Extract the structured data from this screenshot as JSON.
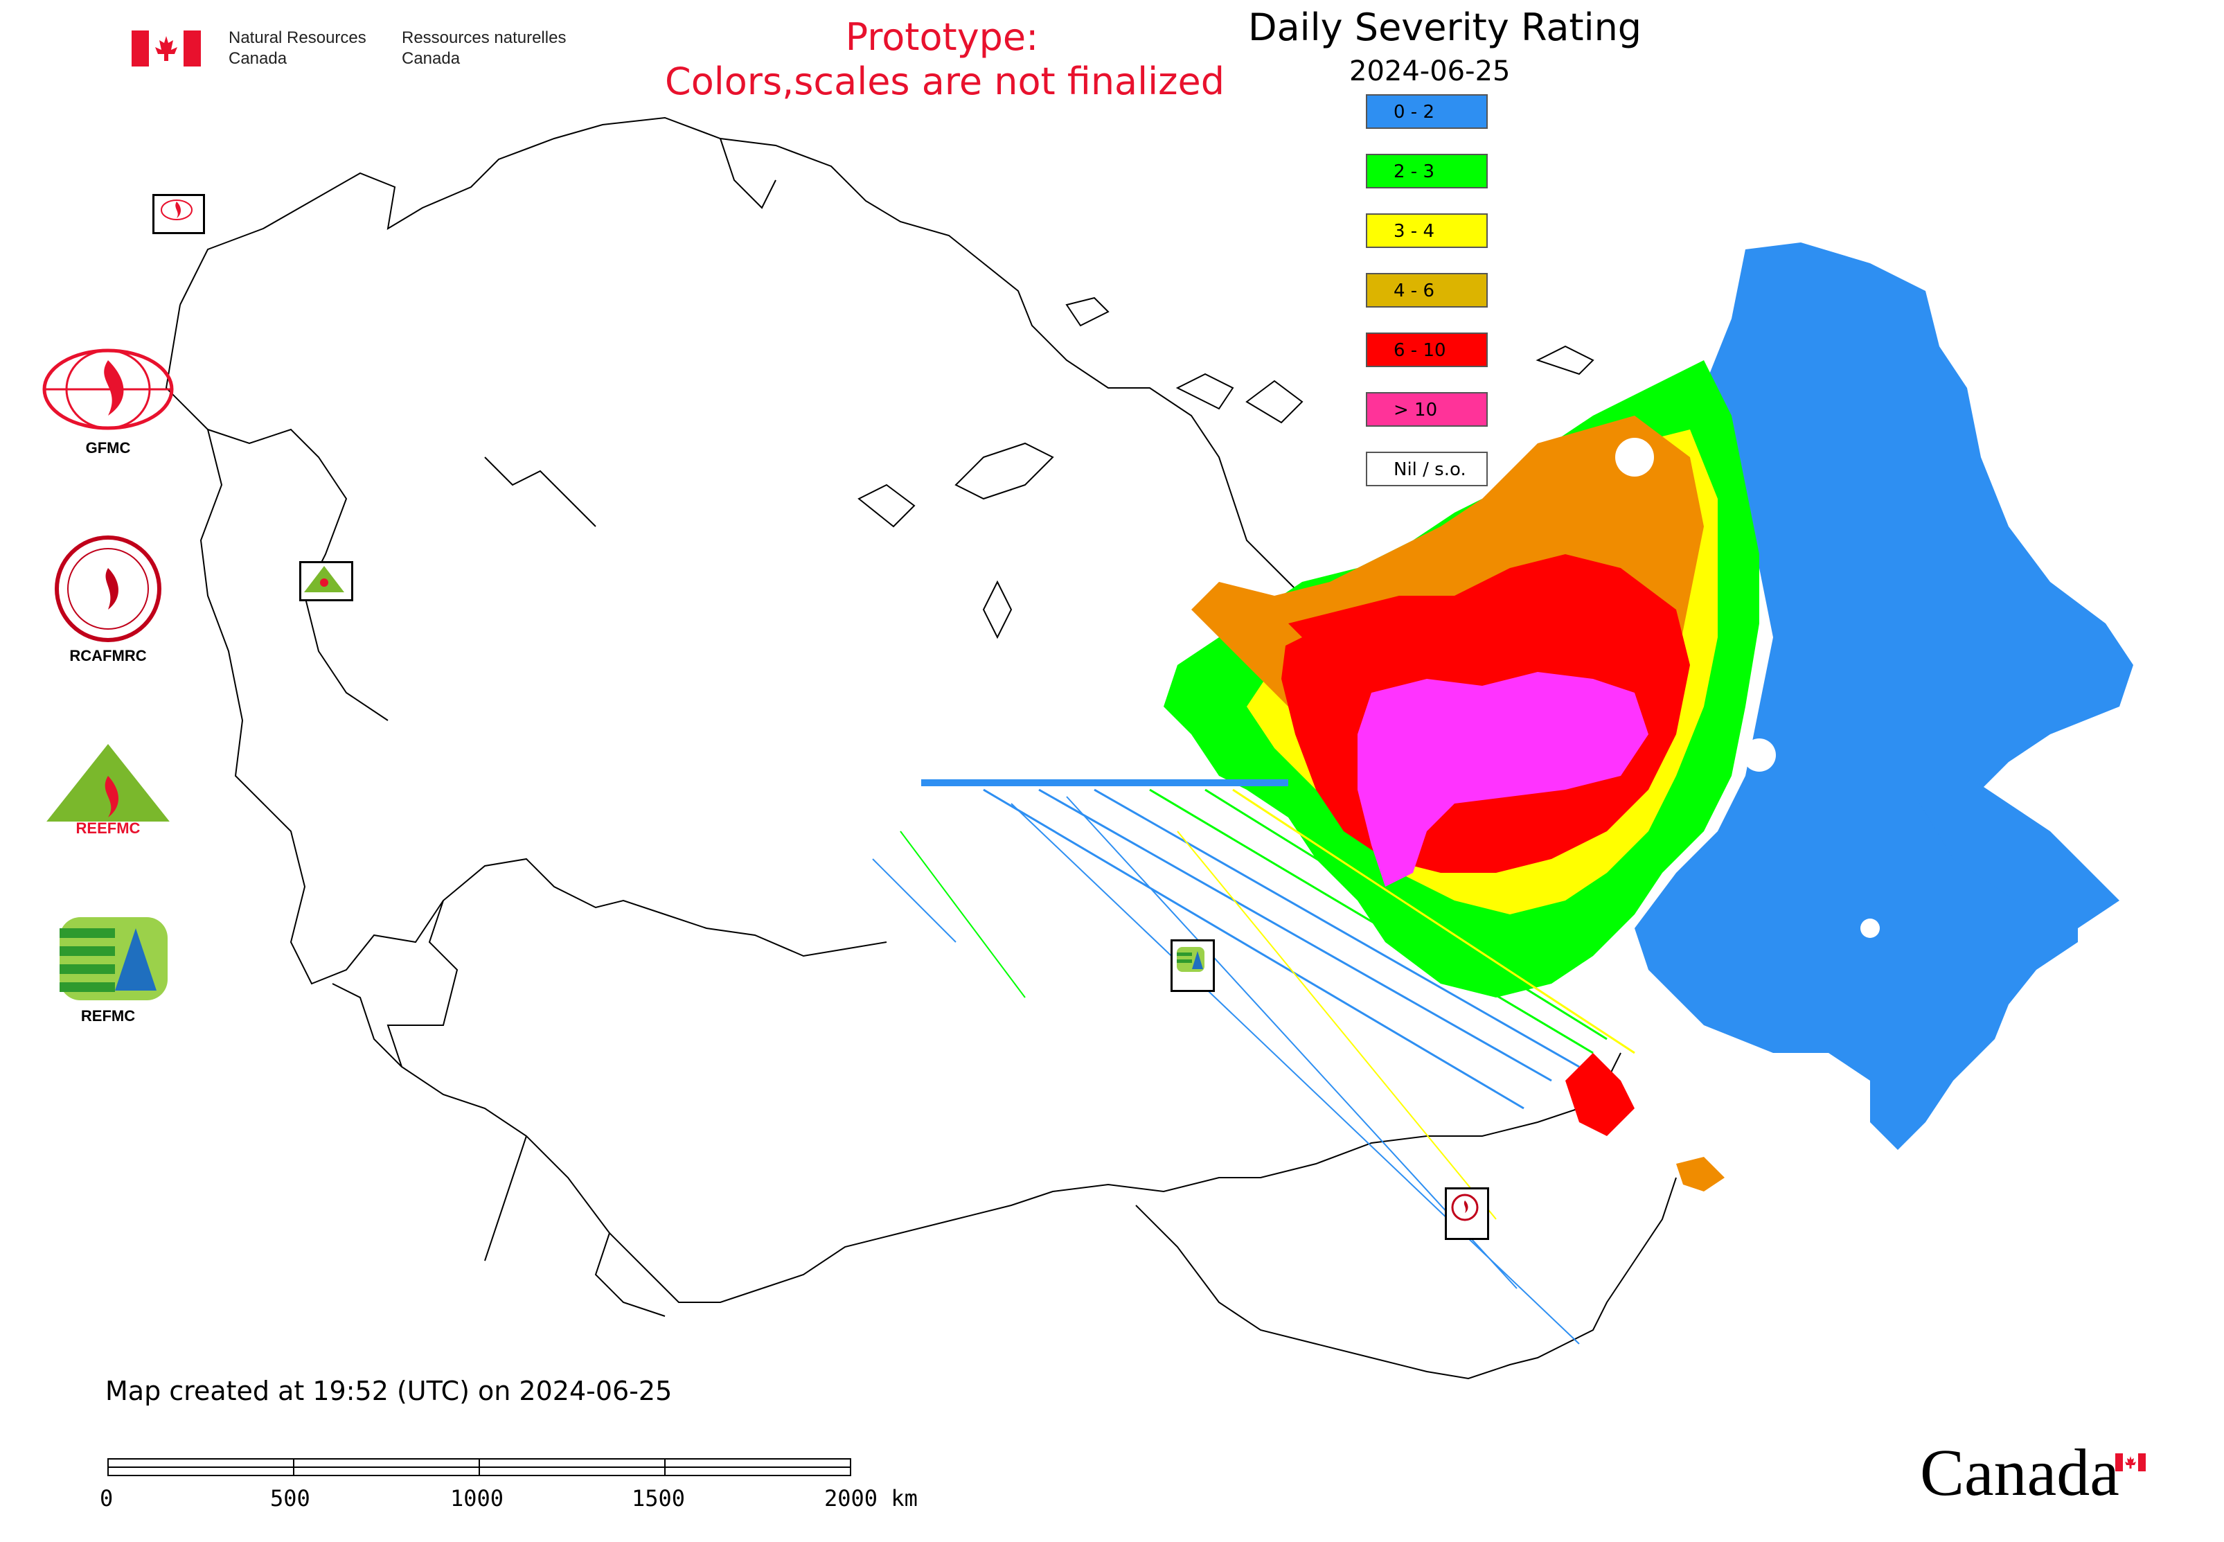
{
  "header": {
    "dept_en": [
      "Natural Resources",
      "Canada"
    ],
    "dept_fr": [
      "Ressources naturelles",
      "Canada"
    ],
    "prototype_lines": [
      "Prototype:",
      "Colors,scales are not finalized"
    ],
    "title": "Daily Severity Rating",
    "date": "2024-06-25"
  },
  "legend": [
    {
      "label": "0 - 2",
      "color": "#2e8ff2"
    },
    {
      "label": "2 - 3",
      "color": "#00ff00"
    },
    {
      "label": "3 - 4",
      "color": "#ffff00"
    },
    {
      "label": "4 - 6",
      "color": "#dcb400"
    },
    {
      "label": "6 - 10",
      "color": "#ff0000"
    },
    {
      "label": "> 10",
      "color": "#ff3399"
    },
    {
      "label": "Nil / s.o.",
      "color": "#ffffff"
    }
  ],
  "organizations": [
    {
      "name": "GFMC",
      "icon": "gfmc-logo-icon"
    },
    {
      "name": "RCAFMRC",
      "icon": "rcafmrc-logo-icon"
    },
    {
      "name": "REEFMC",
      "icon": "reefmc-logo-icon"
    },
    {
      "name": "REFMC",
      "icon": "refmc-logo-icon"
    }
  ],
  "map_markers": [
    {
      "label": "GFMC",
      "icon": "gfmc-marker-icon"
    },
    {
      "label": "REEFMC",
      "icon": "reefmc-marker-icon"
    },
    {
      "label": "REFMC",
      "icon": "refmc-marker-icon"
    },
    {
      "label": "RCAFMRC",
      "icon": "rcafmrc-marker-icon"
    }
  ],
  "footer": {
    "created": "Map created at 19:52 (UTC) on 2024-06-25",
    "scale_ticks": [
      "0",
      "500",
      "1000",
      "1500",
      "2000 km"
    ],
    "wordmark": "Canada"
  },
  "colors": {
    "prototype_text": "#e8112d",
    "canada_flag_red": "#e8112d"
  }
}
